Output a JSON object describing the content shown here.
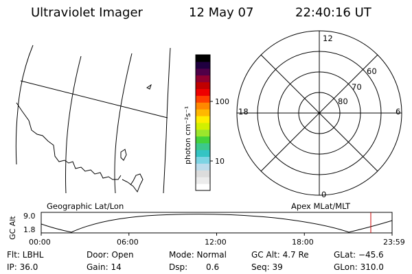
{
  "header": {
    "instrument": "Ultraviolet Imager",
    "date": "12 May 07",
    "time": "22:40:16 UT"
  },
  "panels": {
    "geo_label": "Geographic Lat/Lon",
    "polar_label": "Apex MLat/MLT"
  },
  "polar": {
    "mlt_labels": {
      "top": "12",
      "left": "18",
      "right": "6",
      "bottom": "0"
    },
    "lat_labels": [
      "60",
      "70",
      "80"
    ]
  },
  "colorbar": {
    "unit_label": "photon cm⁻²s⁻¹",
    "tick_100": "100",
    "tick_10": "10",
    "colors": [
      "#ffffff",
      "#ececec",
      "#dcdcdc",
      "#bcdcec",
      "#7cd4e4",
      "#34c4c4",
      "#3cc88c",
      "#44d23c",
      "#9ce62c",
      "#d2f000",
      "#ffee00",
      "#ffb800",
      "#ff8800",
      "#ff4000",
      "#ee0000",
      "#c00000",
      "#900030",
      "#500048",
      "#200040",
      "#000000"
    ]
  },
  "timeline": {
    "y_axis_label": "GC Alt",
    "y_ticks": [
      "9.0",
      "1.8"
    ],
    "x_ticks": [
      "00:00",
      "06:00",
      "12:00",
      "18:00",
      "23:59"
    ],
    "marker_color": "#cc0000"
  },
  "footer": {
    "flt": "Flt: LBHL",
    "ip": "IP: 36.0",
    "door": "Door: Open",
    "gain": "Gain: 14",
    "mode": "Mode: Normal",
    "dsp_label": "Dsp:",
    "dsp_value": "0.6",
    "gc_alt": "GC Alt: 4.7 Re",
    "seq": "Seq: 39",
    "glat": "GLat: −45.6",
    "glon": "GLon: 310.0"
  }
}
